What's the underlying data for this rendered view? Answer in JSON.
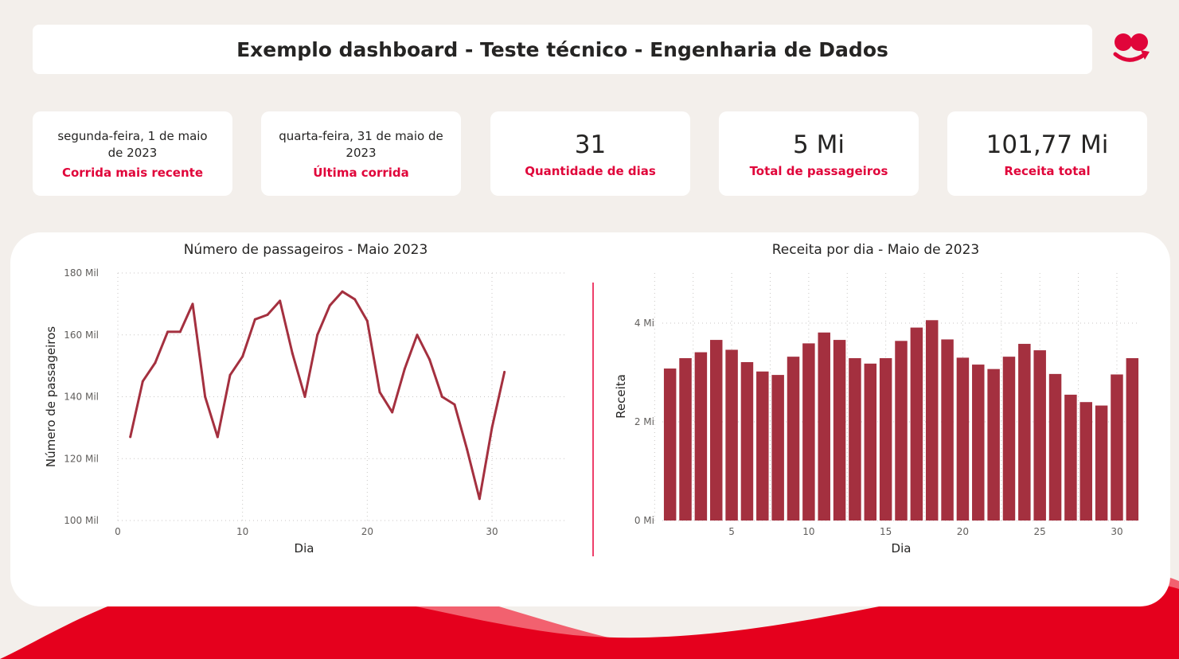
{
  "header": {
    "title": "Exemplo dashboard - Teste técnico - Engenharia de Dados",
    "logo": "brand-logo-icon"
  },
  "cards": [
    {
      "value": "segunda-feira, 1 de maio de 2023",
      "label": "Corrida mais recente"
    },
    {
      "value": "quarta-feira, 31 de maio de 2023",
      "label": "Última corrida"
    },
    {
      "value": "31",
      "label": "Quantidade de dias"
    },
    {
      "value": "5 Mi",
      "label": "Total de passageiros"
    },
    {
      "value": "101,77 Mi",
      "label": "Receita total"
    }
  ],
  "colors": {
    "accent": "#e0053a",
    "series": "#a4303f",
    "wave_light": "#f2616f",
    "wave_dark": "#e5001d",
    "separator": "#ee3f6a"
  },
  "chart_data": [
    {
      "type": "line",
      "title": "Número de passageiros - Maio 2023",
      "xlabel": "Dia",
      "ylabel": "Número de passageiros",
      "xlim": [
        0,
        36
      ],
      "ylim": [
        100000,
        180000
      ],
      "xticks": [
        0,
        10,
        20,
        30
      ],
      "yticks": [
        100000,
        120000,
        140000,
        160000,
        180000
      ],
      "ytick_labels": [
        "100 Mil",
        "120 Mil",
        "140 Mil",
        "160 Mil",
        "180 Mil"
      ],
      "grid": true,
      "x": [
        1,
        2,
        3,
        4,
        5,
        6,
        7,
        8,
        9,
        10,
        11,
        12,
        13,
        14,
        15,
        16,
        17,
        18,
        19,
        20,
        21,
        22,
        23,
        24,
        25,
        26,
        27,
        28,
        29,
        30,
        31
      ],
      "series": [
        {
          "values": [
            127000,
            145000,
            151000,
            161000,
            161000,
            170000,
            140000,
            127000,
            147000,
            153000,
            165000,
            166500,
            171000,
            154000,
            140000,
            160000,
            169500,
            174000,
            171500,
            164500,
            141500,
            135000,
            149000,
            160000,
            152000,
            140000,
            137500,
            123000,
            107000,
            130000,
            148000
          ]
        }
      ]
    },
    {
      "type": "bar",
      "title": "Receita por dia - Maio de 2023",
      "xlabel": "Dia",
      "ylabel": "Receita",
      "ylim": [
        0,
        4000000
      ],
      "xticks": [
        5,
        10,
        15,
        20,
        25,
        30
      ],
      "yticks": [
        0,
        2000000,
        4000000
      ],
      "ytick_labels": [
        "0 Mi",
        "2 Mi",
        "4 Mi"
      ],
      "grid": true,
      "categories": [
        1,
        2,
        3,
        4,
        5,
        6,
        7,
        8,
        9,
        10,
        11,
        12,
        13,
        14,
        15,
        16,
        17,
        18,
        19,
        20,
        21,
        22,
        23,
        24,
        25,
        26,
        27,
        28,
        29,
        30,
        31
      ],
      "series": [
        {
          "values": [
            3080000,
            3290000,
            3410000,
            3660000,
            3460000,
            3210000,
            3020000,
            2950000,
            3320000,
            3590000,
            3810000,
            3660000,
            3290000,
            3180000,
            3290000,
            3640000,
            3910000,
            4060000,
            3670000,
            3300000,
            3160000,
            3070000,
            3320000,
            3580000,
            3450000,
            2970000,
            2550000,
            2400000,
            2330000,
            2960000,
            3290000
          ]
        }
      ]
    }
  ]
}
